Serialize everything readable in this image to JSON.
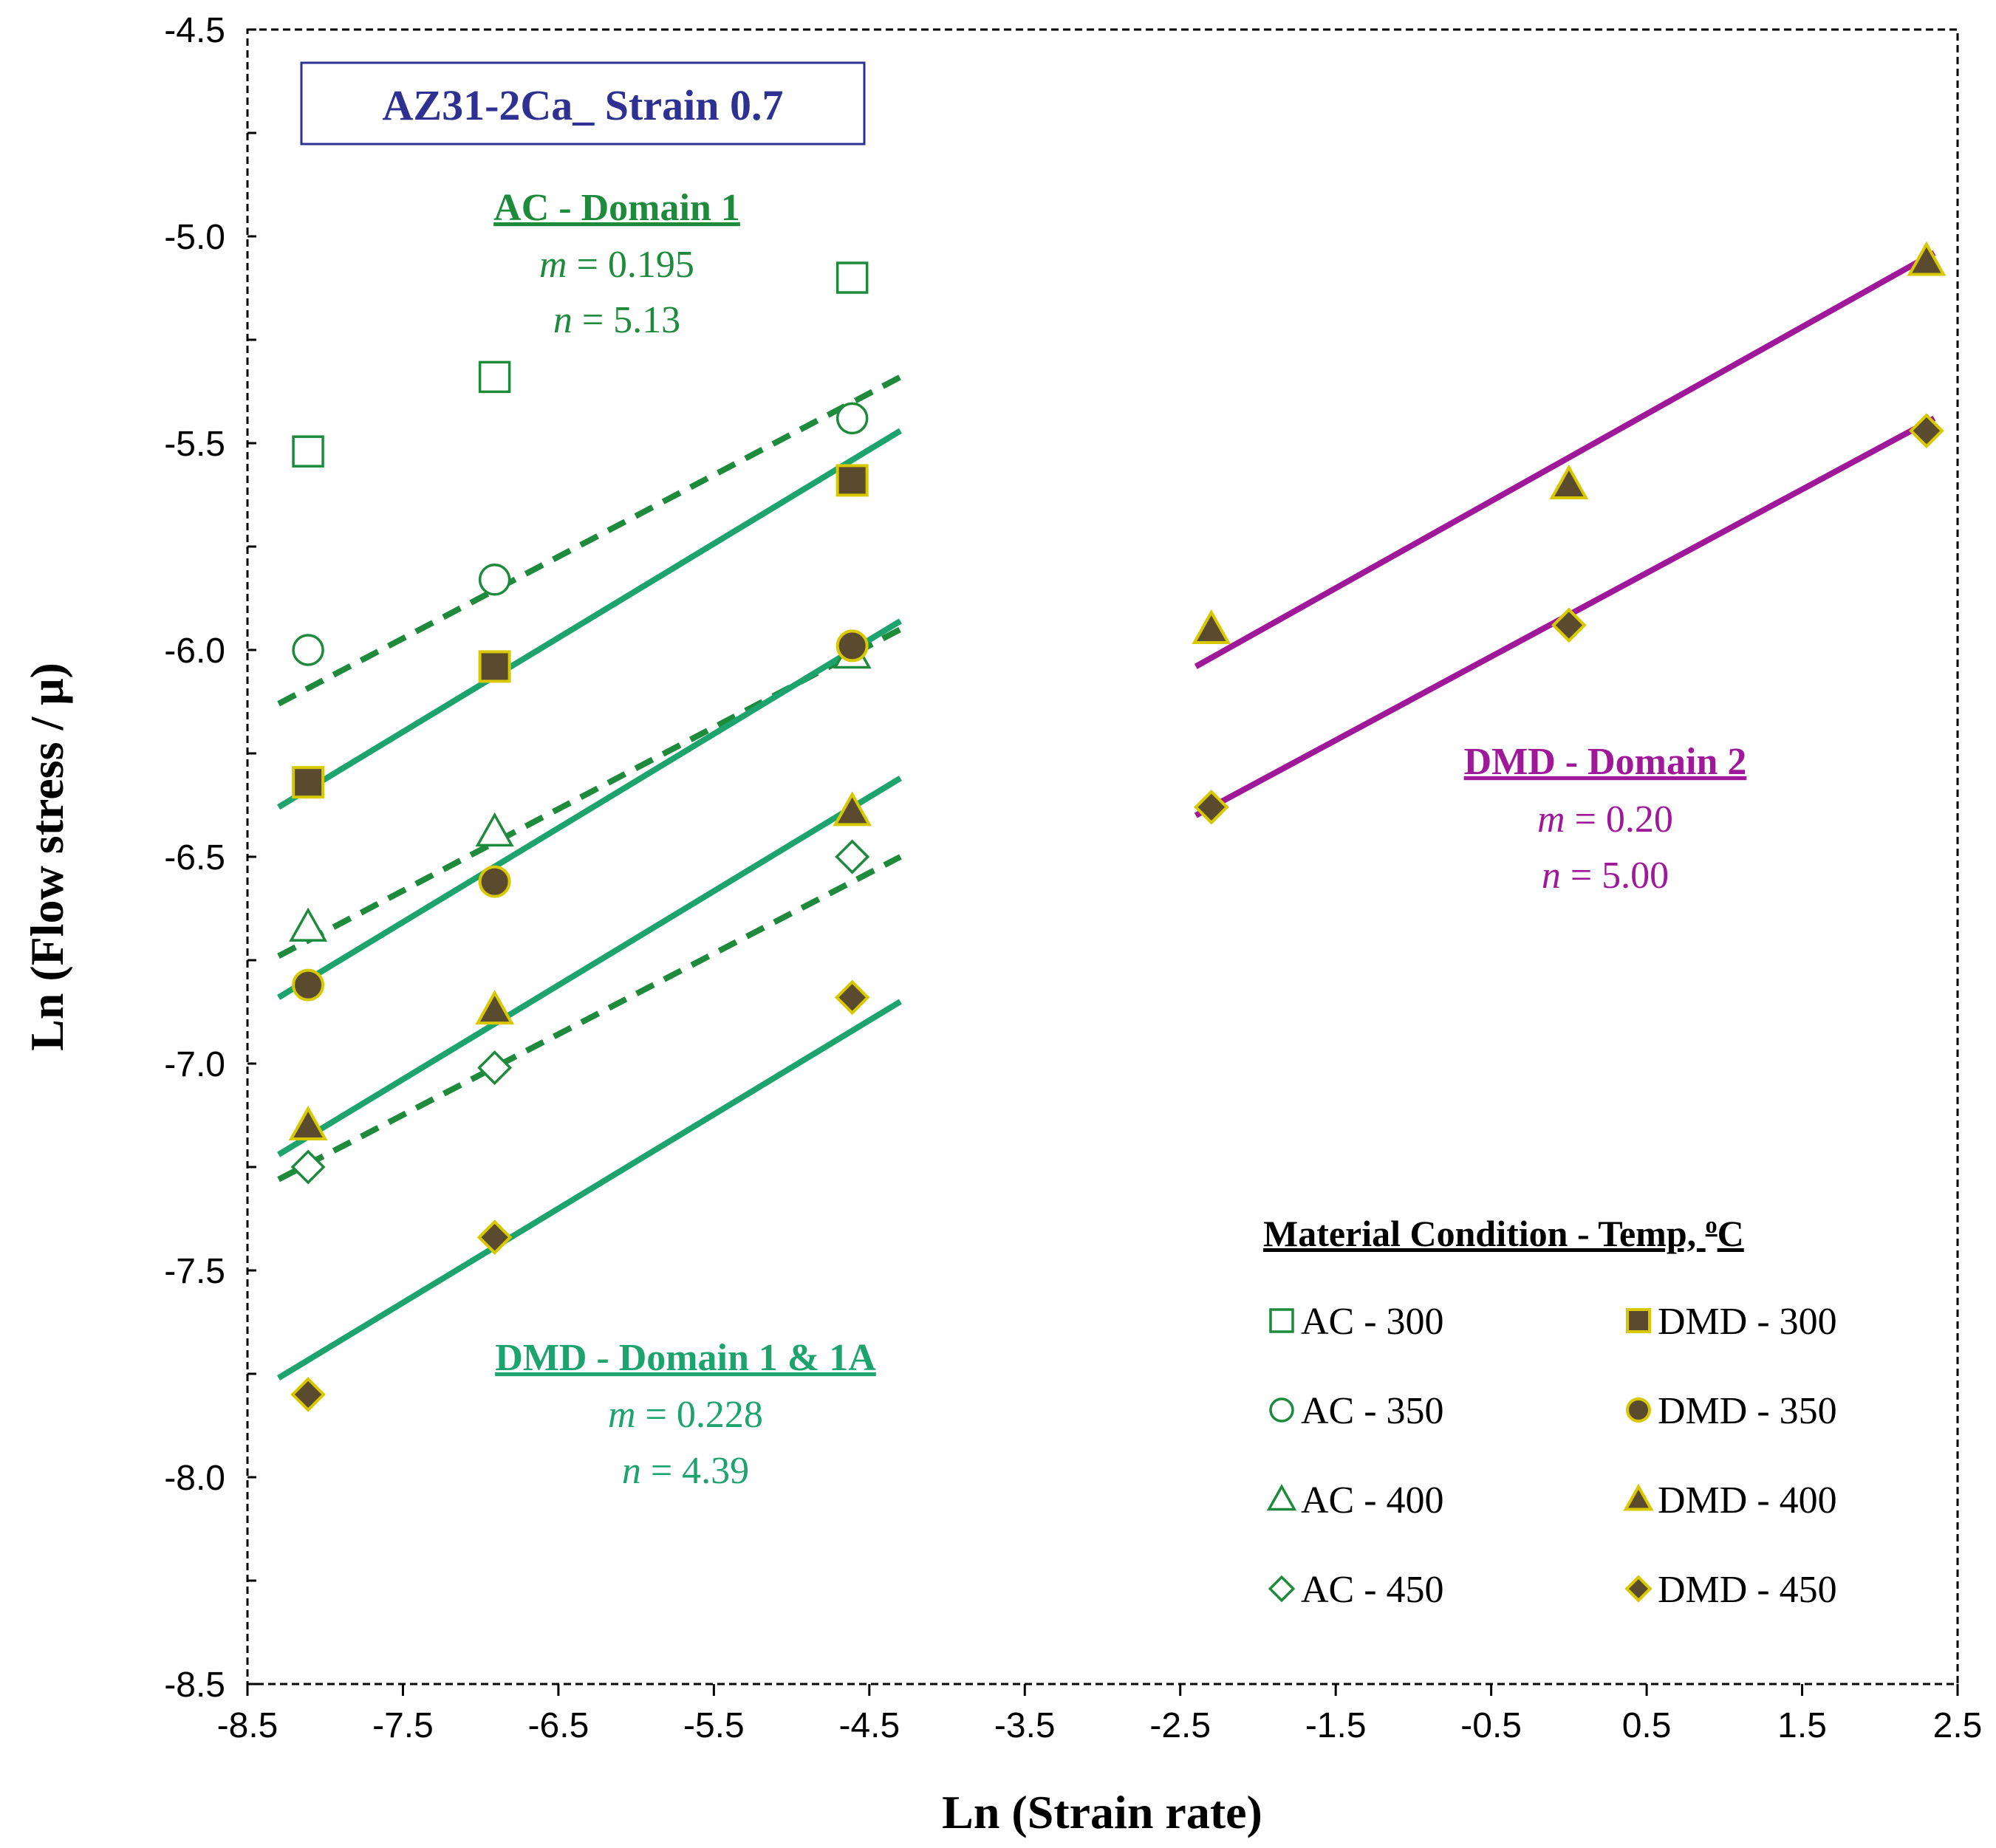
{
  "colors": {
    "ac": "#1e8a3c",
    "dmd_fit": "#1ca36e",
    "dmd_fill": "#5a4a2e",
    "dmd_edge": "#d8c800",
    "domain2": "#a0189a",
    "box_text": "#2e3092"
  },
  "chart_data": {
    "type": "scatter",
    "title": "AZ31-2Ca_ Strain 0.7",
    "xlabel": "Ln (Strain rate)",
    "ylabel": "Ln (Flow stress / μ)",
    "xlim": [
      -8.5,
      2.5
    ],
    "ylim": [
      -8.5,
      -4.5
    ],
    "x_ticks": [
      -8.5,
      -7.5,
      -6.5,
      -5.5,
      -4.5,
      -3.5,
      -2.5,
      -1.5,
      -0.5,
      0.5,
      1.5,
      2.5
    ],
    "x_tick_labels": [
      "-8.5",
      "-7.5",
      "-6.5",
      "-5.5",
      "-4.5",
      "-3.5",
      "-2.5",
      "-1.5",
      "-0.5",
      "0.5",
      "1.5",
      "2.5"
    ],
    "y_ticks": [
      -4.5,
      -5.0,
      -5.5,
      -6.0,
      -6.5,
      -7.0,
      -7.5,
      -8.0,
      -8.5
    ],
    "y_tick_labels": [
      "-4.5",
      "-5.0",
      "-5.5",
      "-6.0",
      "-6.5",
      "-7.0",
      "-7.5",
      "-8.0",
      "-8.5"
    ],
    "y_minor_step": 0.25,
    "grid": false,
    "series": [
      {
        "name": "AC - 300",
        "marker": "square",
        "filled": false,
        "x": [
          -8.11,
          -6.91,
          -4.61
        ],
        "y": [
          -5.52,
          -5.34,
          -5.1
        ]
      },
      {
        "name": "AC - 350",
        "marker": "circle",
        "filled": false,
        "x": [
          -8.11,
          -6.91,
          -4.61
        ],
        "y": [
          -6.0,
          -5.83,
          -5.44
        ]
      },
      {
        "name": "AC - 400",
        "marker": "triangle",
        "filled": false,
        "x": [
          -8.11,
          -6.91,
          -4.61
        ],
        "y": [
          -6.67,
          -6.44,
          -6.01
        ]
      },
      {
        "name": "AC - 450",
        "marker": "diamond",
        "filled": false,
        "x": [
          -8.11,
          -6.91,
          -4.61
        ],
        "y": [
          -7.25,
          -7.01,
          -6.5
        ]
      },
      {
        "name": "DMD - 300",
        "marker": "square",
        "filled": true,
        "x": [
          -8.11,
          -6.91,
          -4.61
        ],
        "y": [
          -6.32,
          -6.04,
          -5.59
        ]
      },
      {
        "name": "DMD - 350",
        "marker": "circle",
        "filled": true,
        "x": [
          -8.11,
          -6.91,
          -4.61
        ],
        "y": [
          -6.81,
          -6.56,
          -5.99
        ]
      },
      {
        "name": "DMD - 400",
        "marker": "triangle",
        "filled": true,
        "x": [
          -8.11,
          -6.91,
          -4.61,
          -2.3,
          0.0,
          2.3
        ],
        "y": [
          -7.15,
          -6.87,
          -6.39,
          -5.95,
          -5.6,
          -5.06
        ]
      },
      {
        "name": "DMD - 450",
        "marker": "diamond",
        "filled": true,
        "x": [
          -8.11,
          -6.91,
          -4.61,
          -2.3,
          0.0,
          2.3
        ],
        "y": [
          -7.8,
          -7.42,
          -6.84,
          -6.38,
          -5.94,
          -5.47
        ]
      }
    ],
    "fit_lines": [
      {
        "group": "AC - Domain 1",
        "style": "dashed",
        "color": "ac",
        "x": [
          -8.3,
          -4.3
        ],
        "y": [
          -6.13,
          -5.34
        ]
      },
      {
        "group": "AC - Domain 1",
        "style": "dashed",
        "color": "ac",
        "x": [
          -8.3,
          -4.3
        ],
        "y": [
          -6.74,
          -5.95
        ]
      },
      {
        "group": "AC - Domain 1",
        "style": "dashed",
        "color": "ac",
        "x": [
          -8.3,
          -4.3
        ],
        "y": [
          -7.28,
          -6.5
        ]
      },
      {
        "group": "DMD - Domain 1 & 1A",
        "style": "solid",
        "color": "dmd_fit",
        "x": [
          -8.3,
          -4.3
        ],
        "y": [
          -6.38,
          -5.47
        ]
      },
      {
        "group": "DMD - Domain 1 & 1A",
        "style": "solid",
        "color": "dmd_fit",
        "x": [
          -8.3,
          -4.3
        ],
        "y": [
          -6.84,
          -5.93
        ]
      },
      {
        "group": "DMD - Domain 1 & 1A",
        "style": "solid",
        "color": "dmd_fit",
        "x": [
          -8.3,
          -4.3
        ],
        "y": [
          -7.22,
          -6.31
        ]
      },
      {
        "group": "DMD - Domain 1 & 1A",
        "style": "solid",
        "color": "dmd_fit",
        "x": [
          -8.3,
          -4.3
        ],
        "y": [
          -7.76,
          -6.85
        ]
      },
      {
        "group": "DMD - Domain 2",
        "style": "solid",
        "color": "domain2",
        "x": [
          -2.4,
          2.35
        ],
        "y": [
          -6.04,
          -5.04
        ]
      },
      {
        "group": "DMD - Domain 2",
        "style": "solid",
        "color": "domain2",
        "x": [
          -2.4,
          2.35
        ],
        "y": [
          -6.4,
          -5.44
        ]
      }
    ],
    "annotations": [
      {
        "id": "ac",
        "title": "AC - Domain 1",
        "m_var": "m",
        "m_text": " = 0.195",
        "n_var": "n",
        "n_text": " = 5.13",
        "color": "ac"
      },
      {
        "id": "dmd1",
        "title": "DMD - Domain 1 & 1A",
        "m_var": "m",
        "m_text": " = 0.228",
        "n_var": "n",
        "n_text": " = 4.39",
        "color": "dmd_fit"
      },
      {
        "id": "dmd2",
        "title": "DMD - Domain 2",
        "m_var": "m",
        "m_text": " = 0.20",
        "n_var": "n",
        "n_text": " = 5.00",
        "color": "domain2"
      }
    ],
    "legend": {
      "title": "Material Condition - Temp, ",
      "title_sup": "o",
      "title_end": "C",
      "position": "bottom-right",
      "items": [
        "AC - 300",
        "DMD - 300",
        "AC - 350",
        "DMD - 350",
        "AC - 400",
        "DMD - 400",
        "AC - 450",
        "DMD - 450"
      ]
    }
  }
}
